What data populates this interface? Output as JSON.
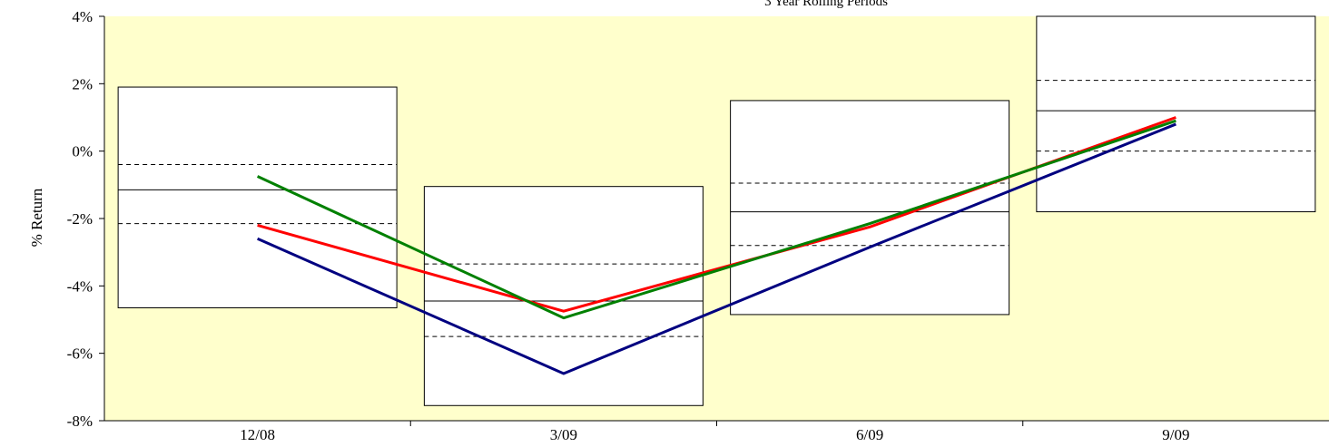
{
  "chart_data": {
    "type": "boxplot-line",
    "title": "3 Year Rolling Periods",
    "ylabel": "% Return",
    "xlabel": "",
    "ylim": [
      -8,
      4
    ],
    "ytick_values": [
      -8,
      -6,
      -4,
      -2,
      0,
      2,
      4
    ],
    "ytick_labels": [
      "-8%",
      "-6%",
      "-4%",
      "-2%",
      "0%",
      "2%",
      "4%"
    ],
    "categories": [
      "12/08",
      "3/09",
      "6/09",
      "9/09"
    ],
    "grid": false,
    "plot_background": "#ffffcc",
    "boxes": [
      {
        "top": 1.9,
        "upper_quartile": -0.4,
        "median": -1.15,
        "lower_quartile": -2.15,
        "bottom": -4.65
      },
      {
        "top": -1.05,
        "upper_quartile": -3.35,
        "median": -4.45,
        "lower_quartile": -5.5,
        "bottom": -7.55
      },
      {
        "top": 1.5,
        "upper_quartile": -0.95,
        "median": -1.8,
        "lower_quartile": -2.8,
        "bottom": -4.85
      },
      {
        "top": 4.0,
        "upper_quartile": 2.1,
        "median": 1.2,
        "lower_quartile": 0.0,
        "bottom": -1.8
      }
    ],
    "series": [
      {
        "color": "#ff0000",
        "values": [
          -2.2,
          -4.75,
          -2.25,
          1.0
        ]
      },
      {
        "color": "#008000",
        "values": [
          -0.75,
          -4.95,
          -2.15,
          0.9
        ]
      },
      {
        "color": "#000080",
        "values": [
          -2.6,
          -6.6,
          -2.85,
          0.8
        ]
      }
    ]
  }
}
